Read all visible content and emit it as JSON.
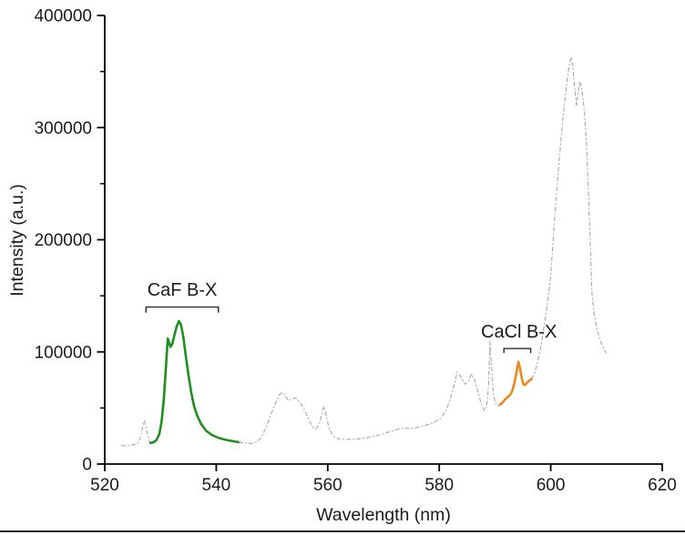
{
  "window": {
    "background": "#ffffff"
  },
  "chart_data": {
    "type": "line",
    "title": "",
    "xlabel": "Wavelength (nm)",
    "ylabel": "Intensity (a.u.)",
    "xlim": [
      520,
      620
    ],
    "ylim": [
      0,
      400000
    ],
    "x_ticks": [
      520,
      540,
      560,
      580,
      600,
      620
    ],
    "y_ticks": [
      0,
      100000,
      200000,
      300000,
      400000
    ],
    "y_minor_ticks": [
      50000,
      150000,
      250000,
      350000
    ],
    "grid": false,
    "legend": "none",
    "axis_color": "#000000",
    "series": [
      {
        "name": "spectrum-gray-left",
        "color": "#a9a9a9",
        "style": "dashdot",
        "width": 1.15,
        "points": [
          [
            523.0,
            16500
          ],
          [
            523.8,
            16000
          ],
          [
            524.6,
            16800
          ],
          [
            525.4,
            17500
          ],
          [
            526.0,
            19000
          ],
          [
            526.5,
            25000
          ],
          [
            526.9,
            35500
          ],
          [
            527.1,
            38500
          ],
          [
            527.4,
            33000
          ],
          [
            527.7,
            24500
          ],
          [
            528.0,
            20000
          ],
          [
            528.2,
            18800
          ]
        ]
      },
      {
        "name": "CaF-B-X-band",
        "color": "#1f8e1f",
        "style": "solid",
        "width": 2.6,
        "points": [
          [
            528.2,
            18800
          ],
          [
            528.8,
            19500
          ],
          [
            529.3,
            21500
          ],
          [
            529.8,
            27000
          ],
          [
            530.2,
            38000
          ],
          [
            530.6,
            58000
          ],
          [
            531.0,
            88000
          ],
          [
            531.3,
            112000
          ],
          [
            531.5,
            109000
          ],
          [
            531.8,
            104500
          ],
          [
            532.1,
            107000
          ],
          [
            532.5,
            115000
          ],
          [
            532.9,
            122500
          ],
          [
            533.3,
            127500
          ],
          [
            533.7,
            124000
          ],
          [
            534.1,
            113000
          ],
          [
            534.5,
            98000
          ],
          [
            535.0,
            80000
          ],
          [
            535.5,
            64000
          ],
          [
            536.0,
            52000
          ],
          [
            536.6,
            43000
          ],
          [
            537.3,
            35500
          ],
          [
            538.2,
            29500
          ],
          [
            539.2,
            26000
          ],
          [
            540.3,
            23500
          ],
          [
            541.5,
            21800
          ],
          [
            542.8,
            20500
          ],
          [
            544.1,
            19500
          ]
        ]
      },
      {
        "name": "spectrum-gray-middle",
        "color": "#a9a9a9",
        "style": "dashdot",
        "width": 1.15,
        "points": [
          [
            544.1,
            19500
          ],
          [
            545.2,
            18700
          ],
          [
            546.2,
            18200
          ],
          [
            547.2,
            19500
          ],
          [
            548.1,
            24000
          ],
          [
            548.9,
            32000
          ],
          [
            549.7,
            43000
          ],
          [
            550.6,
            54000
          ],
          [
            551.3,
            61500
          ],
          [
            551.8,
            64000
          ],
          [
            552.4,
            60500
          ],
          [
            553.0,
            56500
          ],
          [
            553.6,
            58000
          ],
          [
            554.3,
            58800
          ],
          [
            555.0,
            55000
          ],
          [
            555.8,
            48500
          ],
          [
            556.6,
            39500
          ],
          [
            557.3,
            33000
          ],
          [
            557.9,
            31500
          ],
          [
            558.5,
            35500
          ],
          [
            559.0,
            47000
          ],
          [
            559.3,
            51500
          ],
          [
            559.7,
            44000
          ],
          [
            560.2,
            32500
          ],
          [
            560.8,
            26000
          ],
          [
            561.5,
            23000
          ],
          [
            562.5,
            22200
          ],
          [
            564.0,
            22000
          ],
          [
            565.5,
            22500
          ],
          [
            567.0,
            23500
          ],
          [
            568.5,
            25000
          ],
          [
            570.0,
            27000
          ],
          [
            571.5,
            29500
          ],
          [
            573.0,
            31500
          ],
          [
            574.0,
            32000
          ],
          [
            575.0,
            31500
          ],
          [
            576.2,
            32800
          ],
          [
            577.5,
            34500
          ],
          [
            579.0,
            37000
          ],
          [
            580.2,
            40500
          ],
          [
            581.2,
            47500
          ],
          [
            582.0,
            58000
          ],
          [
            582.7,
            71000
          ],
          [
            583.2,
            82000
          ],
          [
            583.8,
            78500
          ],
          [
            584.6,
            71000
          ],
          [
            585.3,
            74500
          ],
          [
            585.8,
            80500
          ],
          [
            586.4,
            74500
          ],
          [
            587.0,
            63500
          ],
          [
            587.6,
            52500
          ],
          [
            588.1,
            47500
          ],
          [
            588.5,
            51000
          ],
          [
            588.8,
            67000
          ],
          [
            589.0,
            95000
          ],
          [
            589.1,
            109500
          ],
          [
            589.4,
            85000
          ],
          [
            589.7,
            62000
          ],
          [
            590.1,
            54000
          ],
          [
            590.5,
            51500
          ],
          [
            590.9,
            53000
          ]
        ]
      },
      {
        "name": "CaCl-B-X-band",
        "color": "#f0861c",
        "style": "solid",
        "width": 2.6,
        "points": [
          [
            590.9,
            53000
          ],
          [
            591.3,
            54500
          ],
          [
            591.8,
            57500
          ],
          [
            592.3,
            59800
          ],
          [
            592.7,
            61500
          ],
          [
            593.1,
            65500
          ],
          [
            593.5,
            72500
          ],
          [
            593.9,
            83000
          ],
          [
            594.2,
            91000
          ],
          [
            594.5,
            85500
          ],
          [
            594.8,
            76500
          ],
          [
            595.1,
            71000
          ],
          [
            595.4,
            70500
          ],
          [
            595.8,
            72800
          ],
          [
            596.2,
            74500
          ],
          [
            596.6,
            76000
          ]
        ]
      },
      {
        "name": "spectrum-gray-right",
        "color": "#a9a9a9",
        "style": "dashdot",
        "width": 1.15,
        "points": [
          [
            596.6,
            76000
          ],
          [
            597.1,
            81000
          ],
          [
            597.7,
            92000
          ],
          [
            598.3,
            107000
          ],
          [
            598.9,
            126000
          ],
          [
            599.5,
            146000
          ],
          [
            600.0,
            168000
          ],
          [
            600.5,
            205000
          ],
          [
            601.0,
            240000
          ],
          [
            601.5,
            270000
          ],
          [
            602.0,
            298000
          ],
          [
            602.5,
            323000
          ],
          [
            603.0,
            345000
          ],
          [
            603.4,
            358000
          ],
          [
            603.7,
            363000
          ],
          [
            604.0,
            352000
          ],
          [
            604.3,
            336000
          ],
          [
            604.6,
            319000
          ],
          [
            604.9,
            330000
          ],
          [
            605.2,
            341000
          ],
          [
            605.6,
            334000
          ],
          [
            606.0,
            316000
          ],
          [
            606.4,
            286000
          ],
          [
            606.8,
            238000
          ],
          [
            607.1,
            195000
          ],
          [
            607.4,
            152000
          ],
          [
            607.8,
            134000
          ],
          [
            608.3,
            120000
          ],
          [
            608.9,
            110000
          ],
          [
            609.4,
            104000
          ],
          [
            609.9,
            99000
          ]
        ]
      }
    ],
    "annotations": [
      {
        "label": "CaF B-X",
        "text_x": 533.9,
        "text_y": 150000,
        "bracket_x1": 527.4,
        "bracket_x2": 540.4,
        "bracket_y": 140000,
        "tick_drop": 5000,
        "color": "#1a1a1a"
      },
      {
        "label": "CaCl B-X",
        "text_x": 594.3,
        "text_y": 112800,
        "bracket_x1": 591.6,
        "bracket_x2": 596.4,
        "bracket_y": 103000,
        "tick_drop": 4000,
        "color": "#1a1a1a"
      }
    ]
  }
}
